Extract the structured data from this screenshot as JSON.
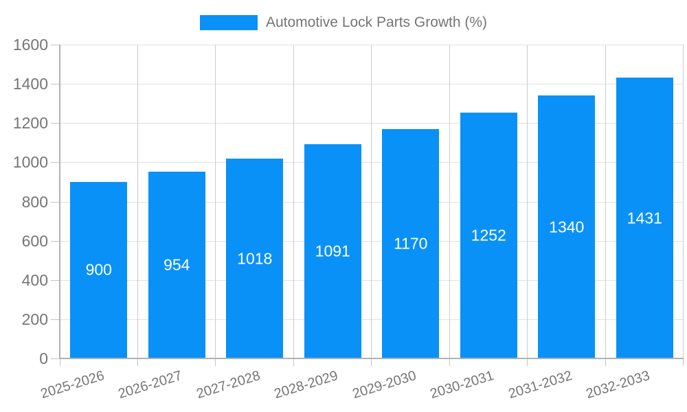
{
  "legend": {
    "label": "Automotive Lock Parts Growth (%)"
  },
  "colors": {
    "bar": "#0991f8",
    "axis_text": "#757575",
    "value_text": "#ffffff",
    "grid_horizontal": "#e0e0e0",
    "grid_vertical": "#cccccc",
    "axis_line": "#b0b0b0",
    "tick": "#c4c4c4",
    "background": "#ffffff"
  },
  "chart_data": {
    "type": "bar",
    "title": "Automotive Lock Parts Growth (%)",
    "categories": [
      "2025-2026",
      "2026-2027",
      "2027-2028",
      "2028-2029",
      "2029-2030",
      "2030-2031",
      "2031-2032",
      "2032-2033"
    ],
    "series": [
      {
        "name": "Automotive Lock Parts Growth (%)",
        "values": [
          900,
          954,
          1018,
          1091,
          1170,
          1252,
          1340,
          1431
        ]
      }
    ],
    "values": [
      900,
      954,
      1018,
      1091,
      1170,
      1252,
      1340,
      1431
    ],
    "bar_labels": [
      "900",
      "954",
      "1018",
      "1091",
      "1170",
      "1252",
      "1340",
      "1431"
    ],
    "xlabel": "",
    "ylabel": "",
    "ylim": [
      0,
      1600
    ],
    "yticks": [
      0,
      200,
      400,
      600,
      800,
      1000,
      1200,
      1400,
      1600
    ],
    "grid": true,
    "legend_position": "top",
    "value_label_position": "middle",
    "x_label_rotation_deg": -17
  }
}
